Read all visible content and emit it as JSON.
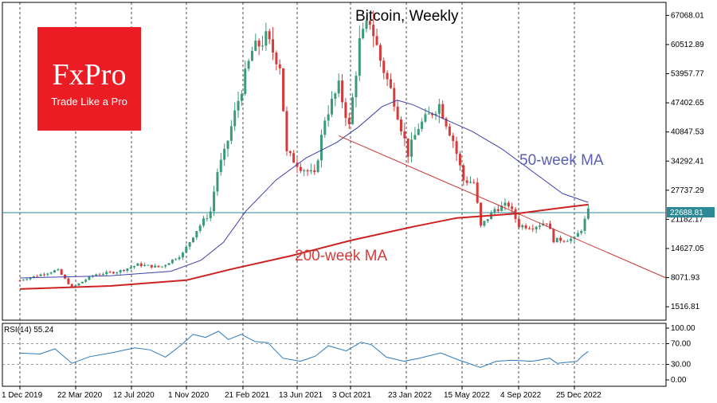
{
  "chart_data": [
    {
      "type": "candlestick",
      "title": "Bitcoin, Weekly",
      "y_ticks": [
        "67068.01",
        "60512.89",
        "53957.77",
        "47402.65",
        "40847.53",
        "34292.41",
        "27737.29",
        "22688.81",
        "21182.17",
        "14627.05",
        "8071.93",
        "1516.81"
      ],
      "y_tick_values": [
        67068.01,
        60512.89,
        53957.77,
        47402.65,
        40847.53,
        34292.41,
        27737.29,
        21182.17,
        14627.05,
        8071.93,
        1516.81
      ],
      "ylim": [
        -1500,
        70000
      ],
      "current_price": 22688.81,
      "x_ticks": [
        "1 Dec 2019",
        "22 Mar 2020",
        "12 Jul 2020",
        "1 Nov 2020",
        "21 Feb 2021",
        "13 Jun 2021",
        "3 Oct 2021",
        "23 Jan 2022",
        "15 May 2022",
        "4 Sep 2022",
        "25 Dec 2022"
      ],
      "close_path": [
        [
          "2019-12-01",
          7500
        ],
        [
          "2020-02-15",
          9800
        ],
        [
          "2020-03-15",
          5800
        ],
        [
          "2020-04-30",
          8800
        ],
        [
          "2020-06-15",
          9400
        ],
        [
          "2020-07-26",
          11000
        ],
        [
          "2020-09-10",
          10400
        ],
        [
          "2020-10-25",
          13500
        ],
        [
          "2020-11-20",
          18500
        ],
        [
          "2020-12-20",
          23000
        ],
        [
          "2021-01-03",
          32000
        ],
        [
          "2021-01-17",
          36000
        ],
        [
          "2021-02-14",
          48000
        ],
        [
          "2021-03-14",
          59000
        ],
        [
          "2021-04-11",
          62000
        ],
        [
          "2021-05-09",
          56000
        ],
        [
          "2021-05-23",
          36000
        ],
        [
          "2021-06-20",
          33000
        ],
        [
          "2021-07-18",
          31000
        ],
        [
          "2021-08-08",
          44000
        ],
        [
          "2021-09-05",
          51000
        ],
        [
          "2021-09-26",
          42000
        ],
        [
          "2021-10-17",
          61000
        ],
        [
          "2021-11-07",
          66000
        ],
        [
          "2021-11-28",
          57000
        ],
        [
          "2021-12-26",
          48000
        ],
        [
          "2022-01-23",
          36000
        ],
        [
          "2022-02-13",
          42000
        ],
        [
          "2022-03-27",
          47000
        ],
        [
          "2022-04-24",
          39000
        ],
        [
          "2022-05-15",
          30000
        ],
        [
          "2022-06-05",
          29500
        ],
        [
          "2022-06-19",
          19500
        ],
        [
          "2022-07-17",
          23500
        ],
        [
          "2022-08-14",
          24500
        ],
        [
          "2022-09-04",
          19800
        ],
        [
          "2022-10-02",
          19500
        ],
        [
          "2022-10-30",
          20700
        ],
        [
          "2022-11-13",
          16500
        ],
        [
          "2022-12-25",
          16800
        ],
        [
          "2023-01-08",
          19000
        ],
        [
          "2023-01-22",
          23000
        ]
      ],
      "series": [
        {
          "name": "50-week MA",
          "points": [
            [
              "2019-12-01",
              8000
            ],
            [
              "2020-06-01",
              8500
            ],
            [
              "2020-10-01",
              9500
            ],
            [
              "2020-12-01",
              12000
            ],
            [
              "2021-01-15",
              16000
            ],
            [
              "2021-03-01",
              23000
            ],
            [
              "2021-05-01",
              30000
            ],
            [
              "2021-07-01",
              35000
            ],
            [
              "2021-09-01",
              38500
            ],
            [
              "2021-10-15",
              42000
            ],
            [
              "2021-12-01",
              46500
            ],
            [
              "2022-01-01",
              48000
            ],
            [
              "2022-02-01",
              47000
            ],
            [
              "2022-04-01",
              44000
            ],
            [
              "2022-06-01",
              41000
            ],
            [
              "2022-08-01",
              37000
            ],
            [
              "2022-10-01",
              32000
            ],
            [
              "2022-12-01",
              27000
            ],
            [
              "2023-01-22",
              25000
            ]
          ]
        },
        {
          "name": "200-week MA",
          "points": [
            [
              "2019-12-01",
              5500
            ],
            [
              "2020-06-01",
              6200
            ],
            [
              "2020-11-01",
              7500
            ],
            [
              "2021-02-01",
              10000
            ],
            [
              "2021-06-01",
              13000
            ],
            [
              "2021-10-01",
              16500
            ],
            [
              "2022-02-01",
              19500
            ],
            [
              "2022-05-01",
              21500
            ],
            [
              "2022-09-01",
              22500
            ],
            [
              "2022-12-01",
              23800
            ],
            [
              "2023-01-22",
              24500
            ]
          ]
        }
      ],
      "trendline": {
        "from": [
          "2021-09-05",
          40000
        ],
        "to": [
          "2023-07-15",
          8000
        ]
      },
      "annotations": [
        "50-week MA",
        "200-week MA"
      ],
      "grid": "vertical dashed",
      "colors": {
        "bull": "#3a9a7a",
        "bear": "#d63b3b",
        "ma50": "#3c40a8",
        "ma200": "#cc2222",
        "trend": "#cc3333",
        "hline": "#2c8a96",
        "rsi": "#2a7ac0"
      }
    },
    {
      "type": "line",
      "label": "RSI(14) 55.24",
      "y_ticks": [
        "100.00",
        "70.00",
        "30.00",
        "0.00"
      ],
      "ylim": [
        0,
        100
      ],
      "ref_lines": [
        70,
        30
      ],
      "points": [
        [
          "2019-12-01",
          52
        ],
        [
          "2020-01-10",
          50
        ],
        [
          "2020-02-10",
          60
        ],
        [
          "2020-03-15",
          32
        ],
        [
          "2020-04-20",
          45
        ],
        [
          "2020-06-01",
          52
        ],
        [
          "2020-07-20",
          62
        ],
        [
          "2020-08-20",
          58
        ],
        [
          "2020-09-20",
          44
        ],
        [
          "2020-10-20",
          66
        ],
        [
          "2020-11-15",
          88
        ],
        [
          "2020-12-10",
          82
        ],
        [
          "2021-01-05",
          94
        ],
        [
          "2021-01-25",
          78
        ],
        [
          "2021-02-20",
          88
        ],
        [
          "2021-03-20",
          74
        ],
        [
          "2021-04-15",
          72
        ],
        [
          "2021-05-15",
          42
        ],
        [
          "2021-06-20",
          36
        ],
        [
          "2021-07-20",
          46
        ],
        [
          "2021-08-15",
          66
        ],
        [
          "2021-09-20",
          56
        ],
        [
          "2021-10-20",
          73
        ],
        [
          "2021-11-10",
          68
        ],
        [
          "2021-12-10",
          44
        ],
        [
          "2022-01-15",
          36
        ],
        [
          "2022-02-15",
          42
        ],
        [
          "2022-03-30",
          52
        ],
        [
          "2022-05-01",
          40
        ],
        [
          "2022-06-18",
          24
        ],
        [
          "2022-07-20",
          36
        ],
        [
          "2022-08-20",
          38
        ],
        [
          "2022-10-01",
          36
        ],
        [
          "2022-11-05",
          42
        ],
        [
          "2022-11-20",
          32
        ],
        [
          "2022-12-30",
          36
        ],
        [
          "2023-01-12",
          48
        ],
        [
          "2023-01-22",
          55
        ]
      ]
    }
  ],
  "logo": {
    "name": "FxPro",
    "tagline": "Trade Like a Pro"
  }
}
